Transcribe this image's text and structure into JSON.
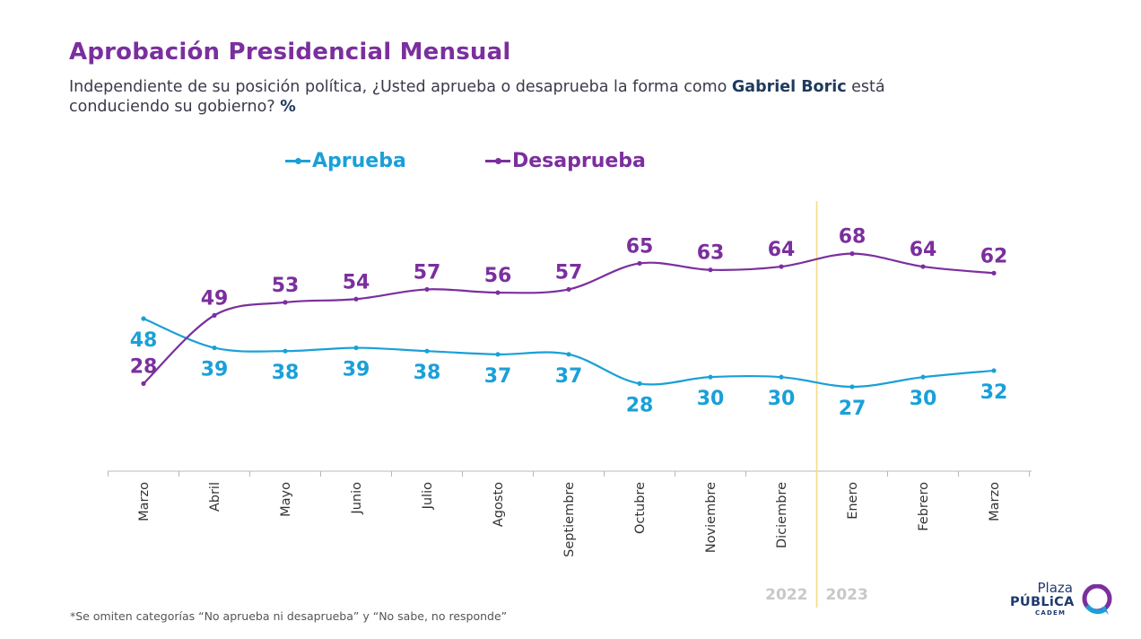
{
  "title": "Aprobación Presidencial Mensual",
  "question": {
    "before": "Independiente de su posición política, ¿Usted aprueba o desaprueba la forma como ",
    "name": "Gabriel Boric",
    "after": " está conduciendo su gobierno? ",
    "unit": "%"
  },
  "legend": {
    "aprueba": "Aprueba",
    "desaprueba": "Desaprueba"
  },
  "colors": {
    "aprueba": "#1aa0d8",
    "desaprueba": "#7b2f9e",
    "title": "#7b2f9e",
    "divider": "#f2dc8c",
    "year_label": "#c8c8c8"
  },
  "chart_data": {
    "type": "line",
    "categories": [
      "Marzo",
      "Abril",
      "Mayo",
      "Junio",
      "Julio",
      "Agosto",
      "Septiembre",
      "Octubre",
      "Noviembre",
      "Diciembre",
      "Enero",
      "Febrero",
      "Marzo"
    ],
    "series": [
      {
        "name": "Aprueba",
        "key": "aprueba",
        "values": [
          48,
          39,
          38,
          39,
          38,
          37,
          37,
          28,
          30,
          30,
          27,
          30,
          32
        ],
        "label_position": "below"
      },
      {
        "name": "Desaprueba",
        "key": "desaprueba",
        "values": [
          28,
          49,
          53,
          54,
          57,
          56,
          57,
          65,
          63,
          64,
          68,
          64,
          62
        ],
        "label_position": "above"
      }
    ],
    "year_divider_between": [
      "Diciembre",
      "Enero"
    ],
    "years": [
      "2022",
      "2023"
    ],
    "grid": false,
    "legend_placement": "top-left"
  },
  "footnote": "*Se omiten categorías “No aprueba ni desaprueba” y “No sabe, no responde”",
  "logo": {
    "line1": "Plaza",
    "line2": "PÚBLiCA",
    "line3": "CADEM"
  }
}
